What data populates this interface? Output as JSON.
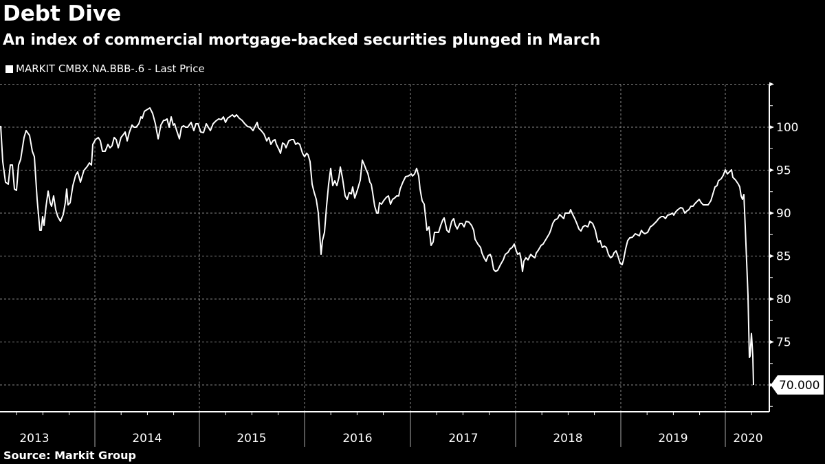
{
  "header": {
    "title": "Debt Dive",
    "subtitle": "An index of commercial mortgage-backed securities plunged in March"
  },
  "legend": {
    "label": "MARKIT CMBX.NA.BBB-.6 - Last Price",
    "color": "#ffffff"
  },
  "footer": {
    "source": "Source: Markit Group"
  },
  "last_value_label": "70.000",
  "colors": {
    "background": "#000000",
    "line": "#ffffff",
    "grid": "#888888"
  },
  "chart_data": {
    "type": "line",
    "title": "Debt Dive",
    "subtitle": "An index of commercial mortgage-backed securities plunged in March",
    "xlabel": "",
    "ylabel": "",
    "ylim": [
      67,
      107
    ],
    "yticks": [
      70,
      75,
      80,
      85,
      90,
      95,
      100
    ],
    "xticks": [
      "2013",
      "2014",
      "2015",
      "2016",
      "2017",
      "2018",
      "2019",
      "2020"
    ],
    "grid": true,
    "legend_position": "top-left",
    "y_axis_side": "right",
    "last_value": 70.0,
    "series": [
      {
        "name": "MARKIT CMBX.NA.BBB-.6 - Last Price",
        "x": [
          "2012-10",
          "2012-11",
          "2012-12",
          "2013-01",
          "2013-02",
          "2013-03",
          "2013-04",
          "2013-05",
          "2013-06",
          "2013-07",
          "2013-08",
          "2013-09",
          "2013-10",
          "2013-11",
          "2013-12",
          "2014-01",
          "2014-02",
          "2014-03",
          "2014-04",
          "2014-05",
          "2014-06",
          "2014-07",
          "2014-08",
          "2014-09",
          "2014-10",
          "2014-11",
          "2014-12",
          "2015-01",
          "2015-02",
          "2015-03",
          "2015-04",
          "2015-05",
          "2015-06",
          "2015-07",
          "2015-08",
          "2015-09",
          "2015-10",
          "2015-11",
          "2015-12",
          "2016-01",
          "2016-02",
          "2016-03",
          "2016-04",
          "2016-05",
          "2016-06",
          "2016-07",
          "2016-08",
          "2016-09",
          "2016-10",
          "2016-11",
          "2016-12",
          "2017-01",
          "2017-02",
          "2017-03",
          "2017-04",
          "2017-05",
          "2017-06",
          "2017-07",
          "2017-08",
          "2017-09",
          "2017-10",
          "2017-11",
          "2017-12",
          "2018-01",
          "2018-02",
          "2018-03",
          "2018-04",
          "2018-05",
          "2018-06",
          "2018-07",
          "2018-08",
          "2018-09",
          "2018-10",
          "2018-11",
          "2018-12",
          "2019-01",
          "2019-02",
          "2019-03",
          "2019-04",
          "2019-05",
          "2019-06",
          "2019-07",
          "2019-08",
          "2019-09",
          "2019-10",
          "2019-11",
          "2019-12",
          "2020-01",
          "2020-02",
          "2020-03"
        ],
        "values": [
          100.2,
          93.5,
          95.5,
          92.8,
          96.0,
          99.5,
          96.5,
          88.0,
          92.5,
          89.0,
          90.0,
          93.5,
          95.0,
          96.0,
          98.5,
          97.5,
          99.0,
          100.0,
          102.0,
          98.5,
          100.5,
          99.5,
          100.5,
          99.5,
          101.0,
          101.3,
          100.5,
          99.8,
          99.5,
          98.5,
          97.5,
          98.5,
          98.0,
          96.5,
          91.5,
          85.0,
          90.0,
          95.0,
          92.5,
          94.0,
          92.0,
          96.0,
          93.0,
          90.0,
          91.5,
          92.5,
          94.5,
          94.8,
          88.0,
          86.5,
          87.5,
          89.0,
          88.0,
          89.0,
          86.0,
          85.0,
          83.0,
          84.5,
          86.0,
          85.0,
          84.0,
          85.0,
          87.0,
          90.0,
          90.5,
          88.0,
          88.5,
          86.0,
          85.0,
          84.0,
          87.0,
          87.5,
          88.0,
          88.5,
          89.5,
          90.0,
          90.5,
          90.0,
          91.0,
          91.5,
          91.0,
          92.5,
          93.5,
          95.0,
          94.5,
          93.5,
          93.0,
          92.0,
          76.0,
          70.0
        ]
      }
    ]
  }
}
